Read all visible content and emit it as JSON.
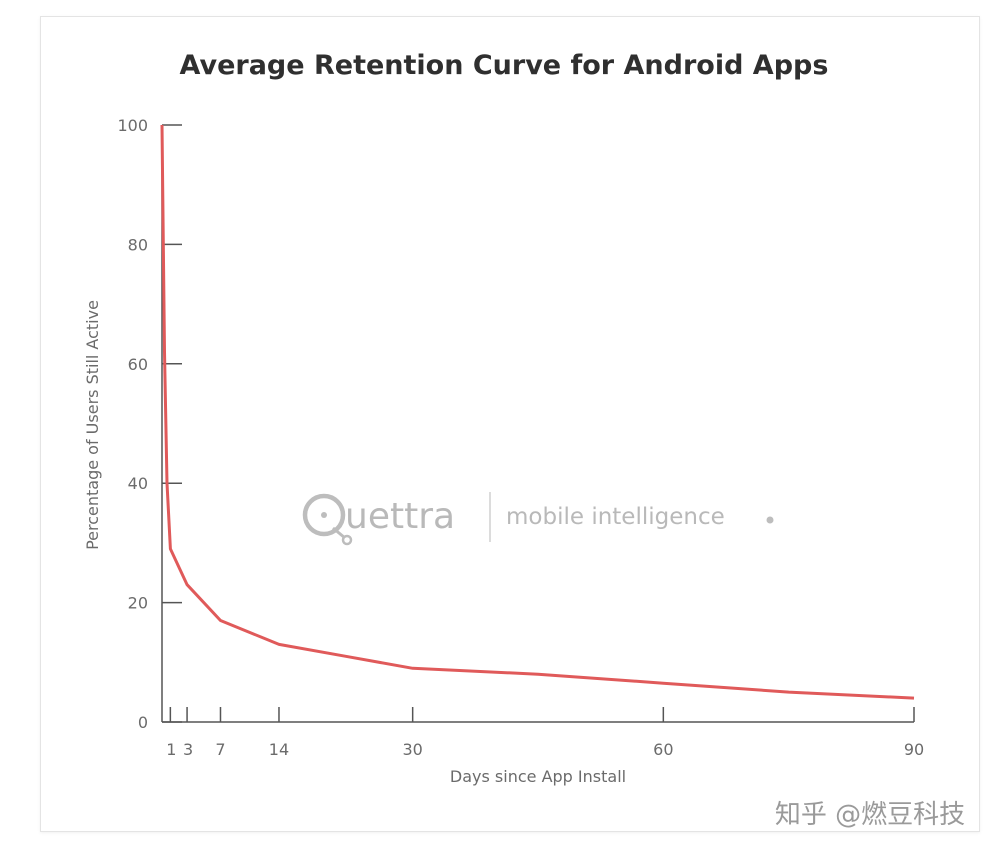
{
  "chart_data": {
    "type": "line",
    "title": "Average Retention Curve for Android Apps",
    "xlabel": "Days since App Install",
    "ylabel": "Percentage of Users Still Active",
    "xlim": [
      0,
      90
    ],
    "ylim": [
      0,
      100
    ],
    "x_ticks": [
      1,
      3,
      7,
      14,
      30,
      60,
      90
    ],
    "y_ticks": [
      0,
      20,
      40,
      60,
      80,
      100
    ],
    "grid": false,
    "legend": "none",
    "series": [
      {
        "color": "#e05a5a",
        "x": [
          0,
          0.3,
          0.6,
          1,
          3,
          7,
          14,
          22,
          30,
          45,
          60,
          75,
          90
        ],
        "y": [
          100,
          62,
          40,
          29,
          23,
          17,
          13,
          11,
          9,
          8,
          6.5,
          5,
          4
        ]
      }
    ]
  },
  "watermark": {
    "brand": "uettra",
    "tagline": "mobile intelligence"
  },
  "credit": "知乎 @燃豆科技"
}
